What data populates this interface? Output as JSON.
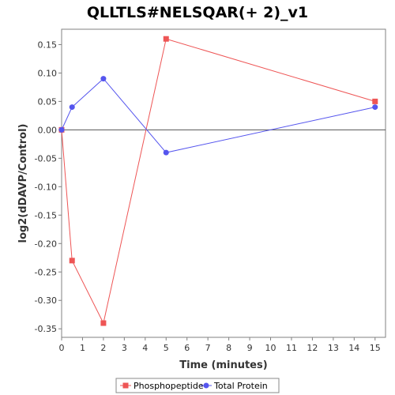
{
  "chart_data": {
    "type": "line",
    "title": "QLLTLS#NELSQAR(+ 2)_v1",
    "xlabel": "Time (minutes)",
    "ylabel": "log2(dDAVP/Control)",
    "xlim": [
      0,
      15.5
    ],
    "ylim": [
      -0.365,
      0.177
    ],
    "xticks": [
      0,
      1,
      2,
      3,
      4,
      5,
      6,
      7,
      8,
      9,
      10,
      11,
      12,
      13,
      14,
      15
    ],
    "yticks": [
      -0.35,
      -0.3,
      -0.25,
      -0.2,
      -0.15,
      -0.1,
      -0.05,
      0.0,
      0.05,
      0.1,
      0.15
    ],
    "ytick_labels": [
      "-0.35",
      "-0.30",
      "-0.25",
      "-0.20",
      "-0.15",
      "-0.10",
      "-0.05",
      "0.00",
      "0.05",
      "0.10",
      "0.15"
    ],
    "legend_position": "bottom",
    "series": [
      {
        "name": "Phosphopeptide",
        "color": "#ee5555",
        "marker": "square",
        "x": [
          0,
          0.5,
          2,
          5,
          15
        ],
        "y": [
          0.0,
          -0.23,
          -0.34,
          0.16,
          0.05
        ]
      },
      {
        "name": "Total Protein",
        "color": "#5555ee",
        "marker": "circle",
        "x": [
          0,
          0.5,
          2,
          5,
          15
        ],
        "y": [
          0.0,
          0.04,
          0.09,
          -0.04,
          0.04
        ]
      }
    ]
  }
}
